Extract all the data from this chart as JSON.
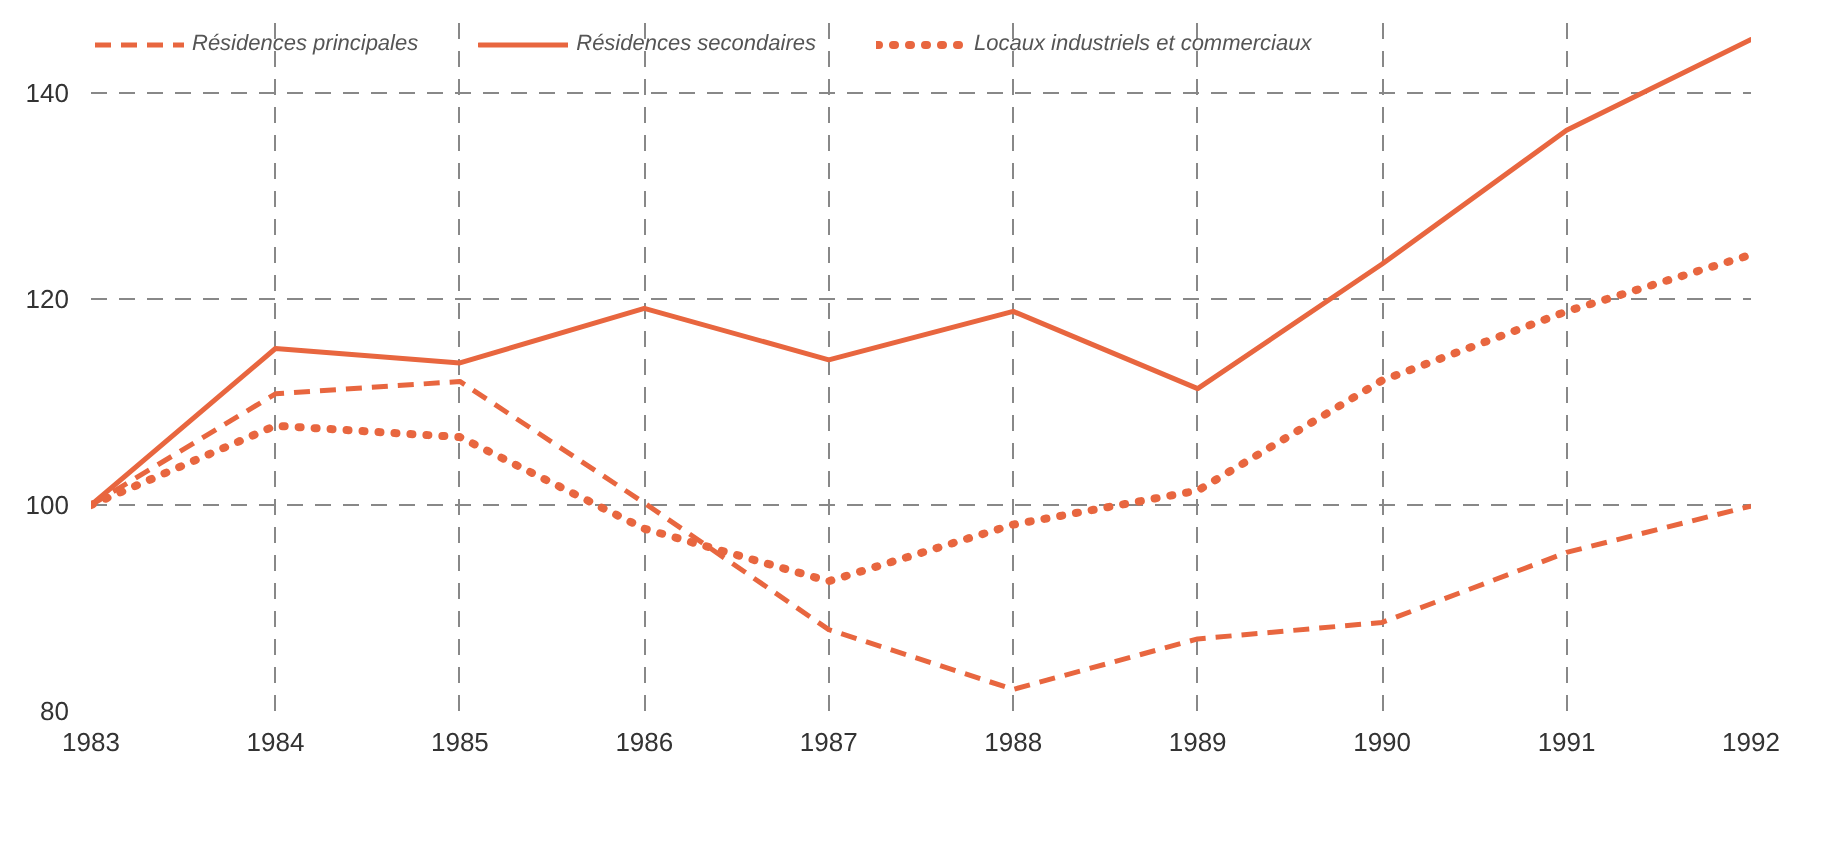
{
  "chart_data": {
    "type": "line",
    "x": [
      1983,
      1984,
      1985,
      1986,
      1987,
      1988,
      1989,
      1990,
      1991,
      1992
    ],
    "series": [
      {
        "name": "Résidences principales",
        "color": "#e8663f",
        "line_style": "dashed",
        "values": [
          100,
          110.8,
          112,
          100.2,
          87.9,
          82.1,
          87,
          88.6,
          95.4,
          99.9
        ]
      },
      {
        "name": "Résidences secondaires",
        "color": "#e8663f",
        "line_style": "solid",
        "values": [
          100,
          115.2,
          113.8,
          119.1,
          114.1,
          118.8,
          111.3,
          123.4,
          136.4,
          145.2
        ]
      },
      {
        "name": "Locaux industriels et commerciaux",
        "color": "#e8663f",
        "line_style": "dotted",
        "values": [
          100,
          107.7,
          106.6,
          97.7,
          92.6,
          98.1,
          101.4,
          112.1,
          118.8,
          124.3
        ]
      }
    ],
    "xlim": [
      1983,
      1992
    ],
    "xticks": [
      1983,
      1984,
      1985,
      1986,
      1987,
      1988,
      1989,
      1990,
      1991,
      1992
    ],
    "ylim": [
      80,
      147
    ],
    "yticks": [
      80,
      100,
      120,
      140
    ],
    "grid": true,
    "legend": "top",
    "marker": "none"
  }
}
